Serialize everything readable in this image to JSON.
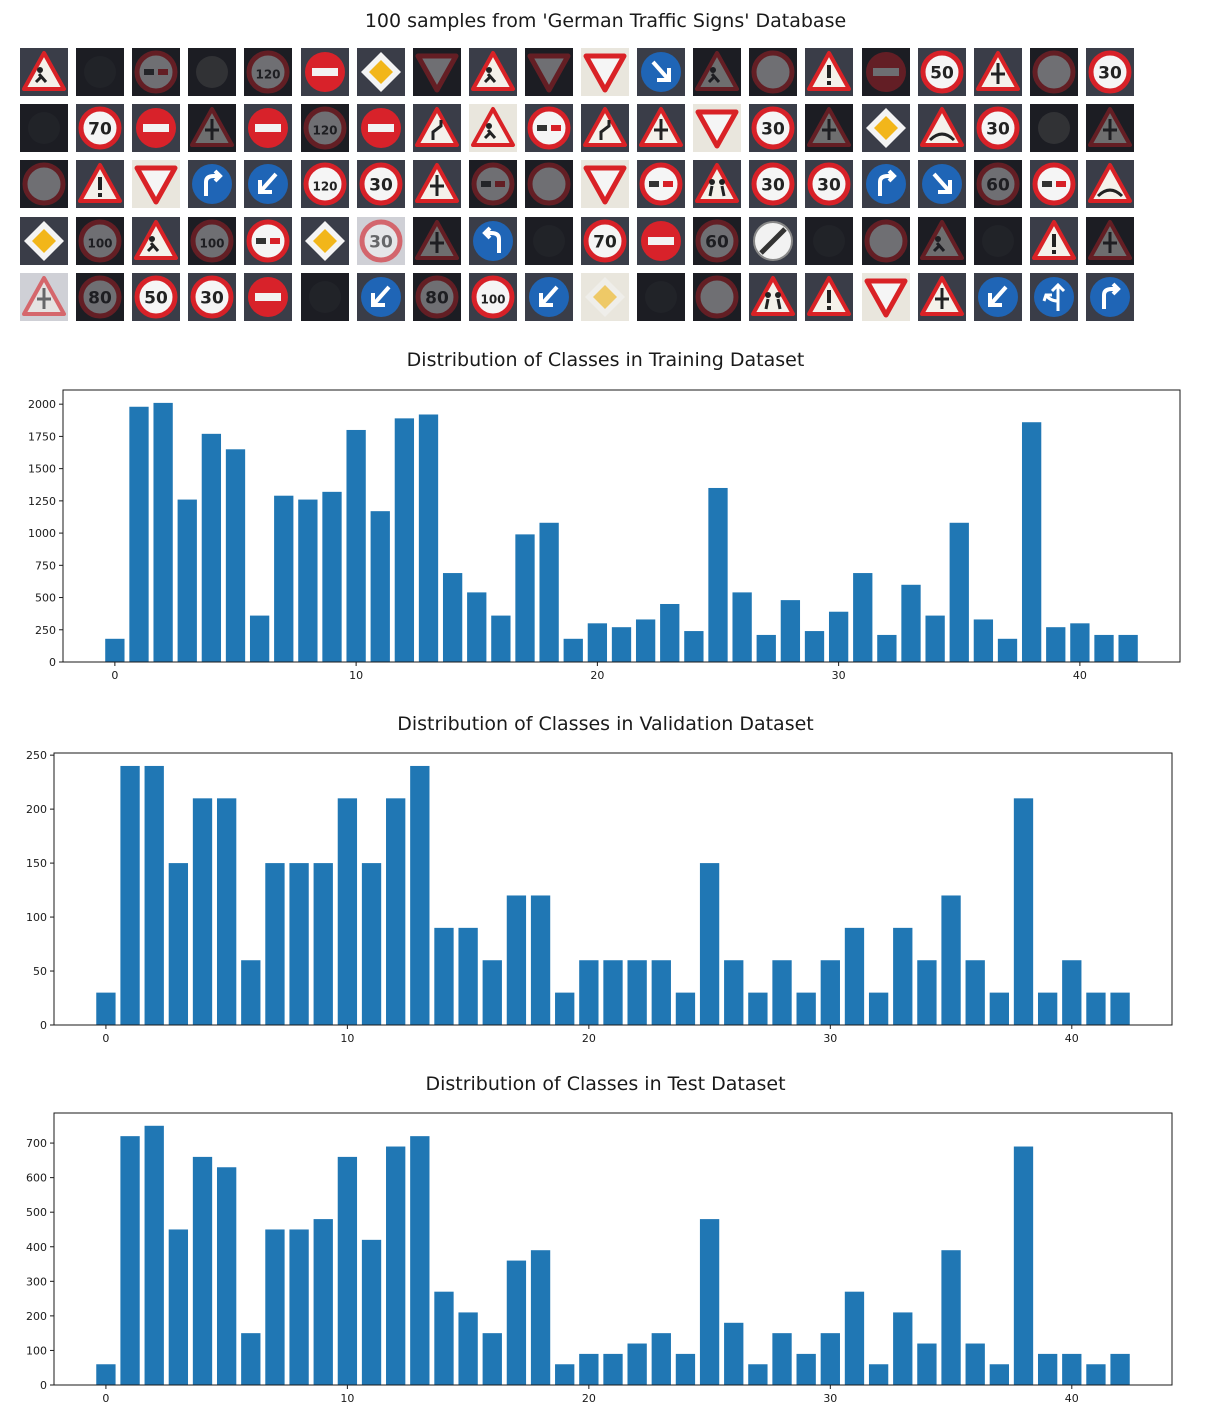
{
  "samples": {
    "title": "100 samples from 'German Traffic Signs' Database",
    "rows": [
      [
        "work-tri",
        "dark",
        "nopass-dark",
        "dark-tri",
        "r120-dark",
        "noentry",
        "prio-diamond",
        "yield-dark",
        "work-tri",
        "yield-dark",
        "yield",
        "keepright",
        "work-tri-dark",
        "r-dark",
        "danger",
        "noentry-dark",
        "r50",
        "tri",
        "r-dark",
        "r30"
      ],
      [
        "dark",
        "r70",
        "noentry-gray",
        "tri-dark",
        "noentry",
        "r120-dark",
        "noentry",
        "curve-tri",
        "work-tri-bright",
        "nopass",
        "curve-tri",
        "tri",
        "yield",
        "r30",
        "tri-dark",
        "prio-diamond",
        "bump-tri",
        "r30",
        "dark-tri",
        "tri-dark"
      ],
      [
        "r-dark",
        "danger",
        "yield",
        "turnright",
        "keepleft",
        "r120",
        "r30",
        "tri",
        "nopass-dark",
        "r-dark",
        "yield",
        "nopass",
        "kids-tri",
        "r30",
        "r30",
        "turnright",
        "keepright",
        "r60-dark",
        "nopass-gray",
        "bump-tri"
      ],
      [
        "prio-diamond",
        "r100-dark",
        "work-tri",
        "r100-dark",
        "nopass-gray",
        "prio-diamond",
        "r30-faded",
        "tri-dark",
        "turnleft",
        "dark",
        "r70",
        "noentry",
        "r60-dark",
        "endlimit",
        "dark",
        "r-dark",
        "work-tri-dark",
        "dark",
        "danger",
        "tri-dark"
      ],
      [
        "tri-faded",
        "r80-dark",
        "r50",
        "r30",
        "noentry",
        "dark",
        "keepleft",
        "r80-dark",
        "r100",
        "keepleft",
        "prio-faded",
        "dark",
        "r-dark",
        "kids-tri",
        "danger",
        "yield",
        "tri",
        "keepleft",
        "straightleft",
        "turnright"
      ]
    ]
  },
  "colors": {
    "bar": "#2077b4",
    "axis": "#1a1a1a"
  },
  "chart_data": [
    {
      "type": "bar",
      "title": "Distribution of Classes in Training Dataset",
      "xlabel": "",
      "ylabel": "",
      "xlim": [
        -2.15,
        44.15
      ],
      "ylim": [
        0,
        2110
      ],
      "xticks": [
        0,
        10,
        20,
        30,
        40
      ],
      "yticks": [
        0,
        250,
        500,
        750,
        1000,
        1250,
        1500,
        1750,
        2000
      ],
      "categories": [
        0,
        1,
        2,
        3,
        4,
        5,
        6,
        7,
        8,
        9,
        10,
        11,
        12,
        13,
        14,
        15,
        16,
        17,
        18,
        19,
        20,
        21,
        22,
        23,
        24,
        25,
        26,
        27,
        28,
        29,
        30,
        31,
        32,
        33,
        34,
        35,
        36,
        37,
        38,
        39,
        40,
        41,
        42
      ],
      "values": [
        180,
        1980,
        2010,
        1260,
        1770,
        1650,
        360,
        1290,
        1260,
        1320,
        1800,
        1170,
        1890,
        1920,
        690,
        540,
        360,
        990,
        1080,
        180,
        300,
        270,
        330,
        450,
        240,
        1350,
        540,
        210,
        480,
        240,
        390,
        690,
        210,
        599,
        360,
        1080,
        330,
        180,
        1860,
        270,
        300,
        210,
        210
      ]
    },
    {
      "type": "bar",
      "title": "Distribution of Classes in Validation Dataset",
      "xlabel": "",
      "ylabel": "",
      "xlim": [
        -2.15,
        44.15
      ],
      "ylim": [
        0,
        252
      ],
      "xticks": [
        0,
        10,
        20,
        30,
        40
      ],
      "yticks": [
        0,
        50,
        100,
        150,
        200,
        250
      ],
      "categories": [
        0,
        1,
        2,
        3,
        4,
        5,
        6,
        7,
        8,
        9,
        10,
        11,
        12,
        13,
        14,
        15,
        16,
        17,
        18,
        19,
        20,
        21,
        22,
        23,
        24,
        25,
        26,
        27,
        28,
        29,
        30,
        31,
        32,
        33,
        34,
        35,
        36,
        37,
        38,
        39,
        40,
        41,
        42
      ],
      "values": [
        30,
        240,
        240,
        150,
        210,
        210,
        60,
        150,
        150,
        150,
        210,
        150,
        210,
        240,
        90,
        90,
        60,
        120,
        120,
        30,
        60,
        60,
        60,
        60,
        30,
        150,
        60,
        30,
        60,
        30,
        60,
        90,
        30,
        90,
        60,
        120,
        60,
        30,
        210,
        30,
        60,
        30,
        30
      ]
    },
    {
      "type": "bar",
      "title": "Distribution of Classes in Test Dataset",
      "xlabel": "",
      "ylabel": "",
      "xlim": [
        -2.15,
        44.15
      ],
      "ylim": [
        0,
        787
      ],
      "xticks": [
        0,
        10,
        20,
        30,
        40
      ],
      "yticks": [
        0,
        100,
        200,
        300,
        400,
        500,
        600,
        700
      ],
      "categories": [
        0,
        1,
        2,
        3,
        4,
        5,
        6,
        7,
        8,
        9,
        10,
        11,
        12,
        13,
        14,
        15,
        16,
        17,
        18,
        19,
        20,
        21,
        22,
        23,
        24,
        25,
        26,
        27,
        28,
        29,
        30,
        31,
        32,
        33,
        34,
        35,
        36,
        37,
        38,
        39,
        40,
        41,
        42
      ],
      "values": [
        60,
        720,
        750,
        450,
        660,
        630,
        150,
        450,
        450,
        480,
        660,
        420,
        690,
        720,
        270,
        210,
        150,
        360,
        390,
        60,
        90,
        90,
        120,
        150,
        90,
        480,
        180,
        60,
        150,
        90,
        150,
        270,
        60,
        210,
        120,
        390,
        120,
        60,
        690,
        90,
        90,
        60,
        90
      ]
    }
  ]
}
